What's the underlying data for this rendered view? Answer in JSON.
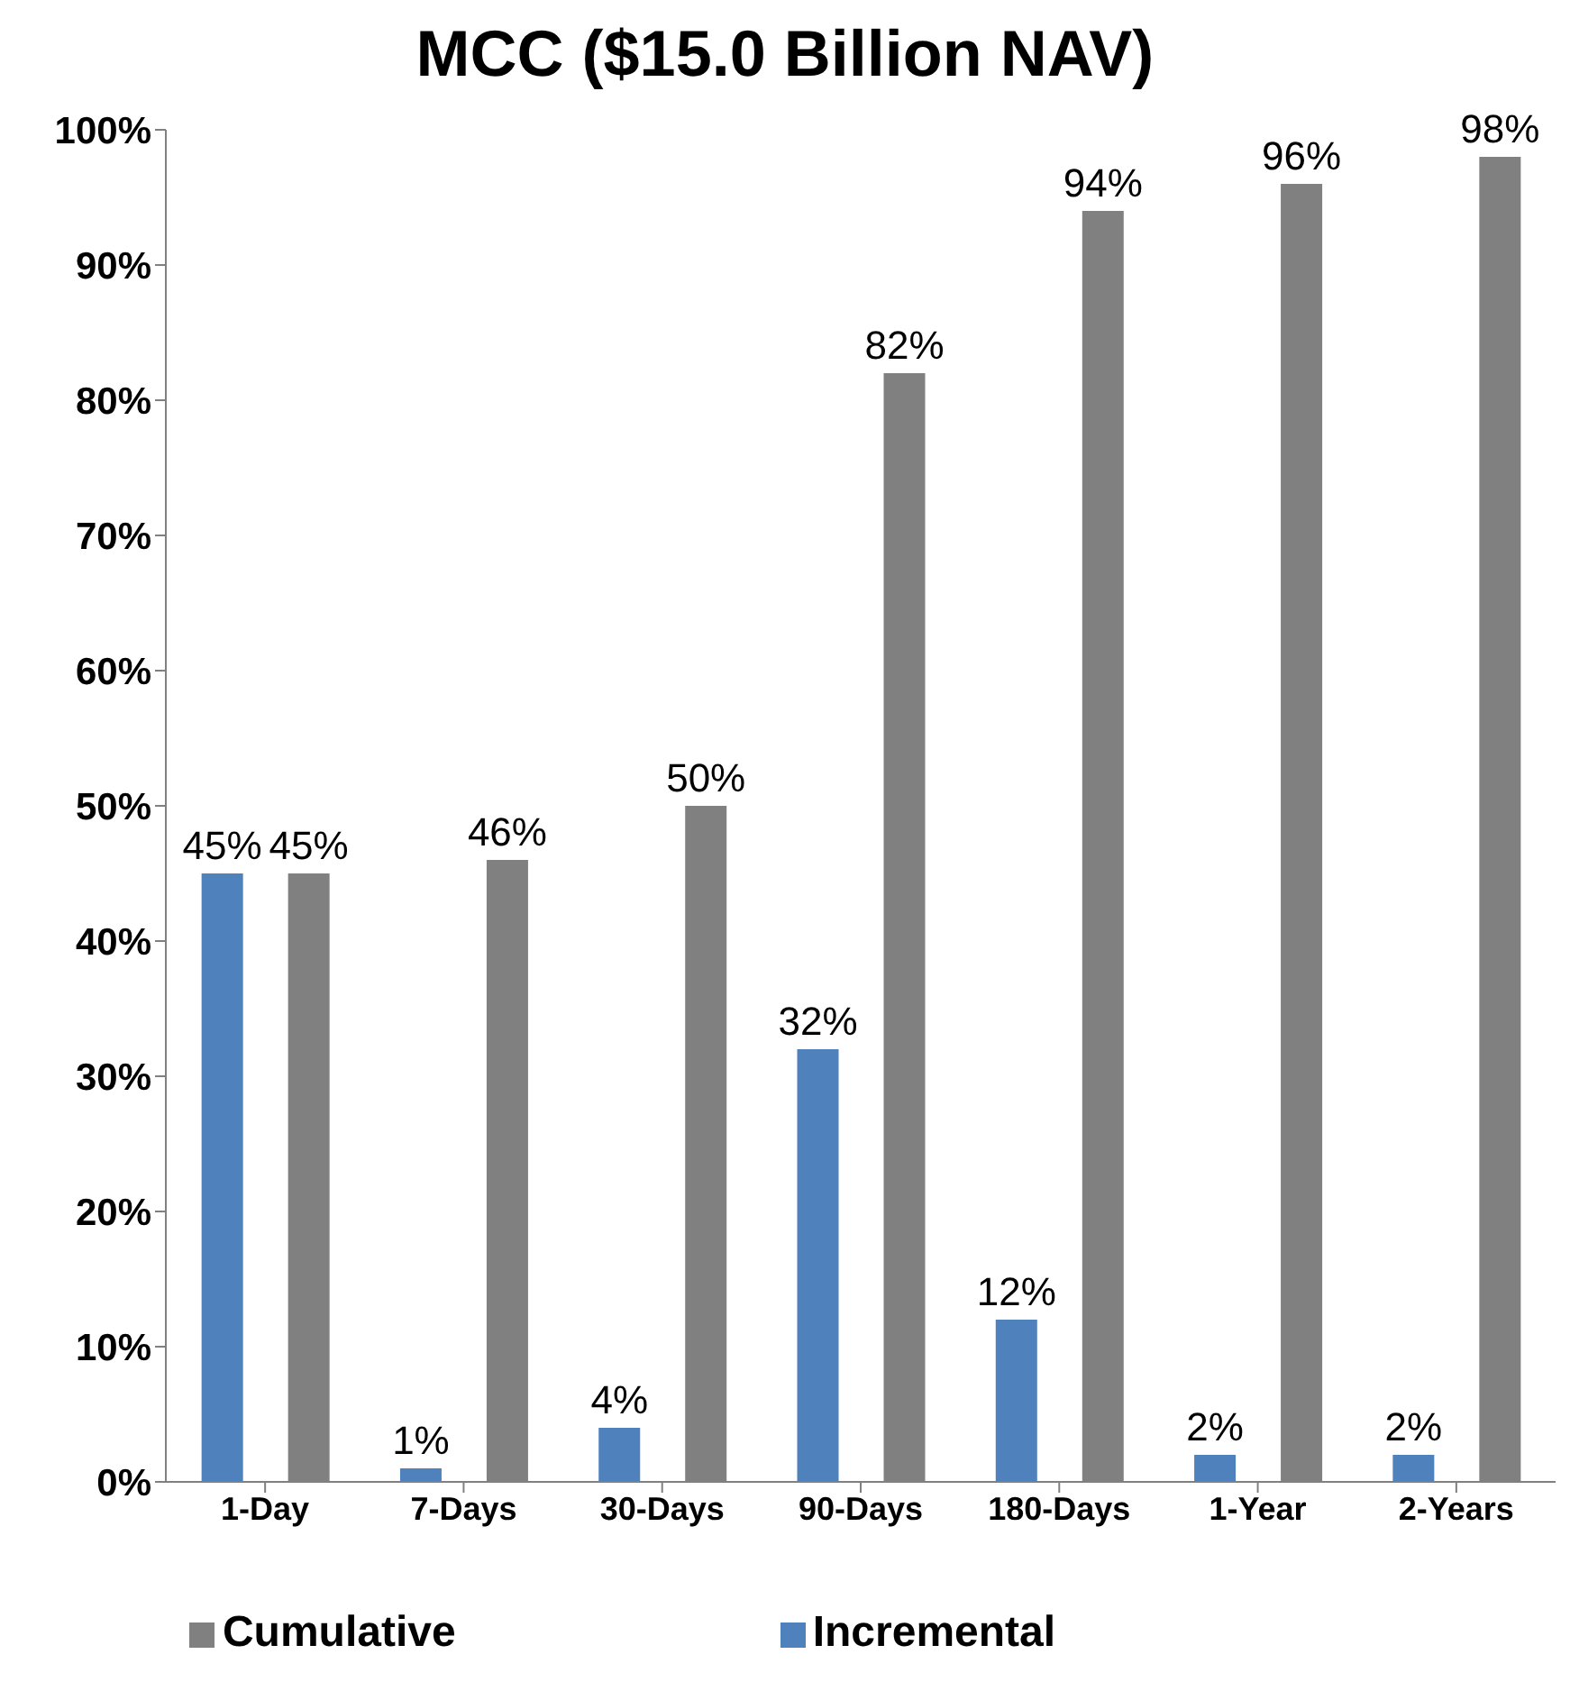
{
  "chart_data": {
    "type": "bar",
    "title": "MCC ($15.0 Billion NAV)",
    "categories": [
      "1-Day",
      "7-Days",
      "30-Days",
      "90-Days",
      "180-Days",
      "1-Year",
      "2-Years"
    ],
    "series": [
      {
        "name": "Incremental",
        "color": "#4f81bd",
        "values": [
          45,
          1,
          4,
          32,
          12,
          2,
          2
        ],
        "value_labels": [
          "45%",
          "1%",
          "4%",
          "32%",
          "12%",
          "2%",
          "2%"
        ]
      },
      {
        "name": "Cumulative",
        "color": "#808080",
        "values": [
          45,
          46,
          50,
          82,
          94,
          96,
          98
        ],
        "value_labels": [
          "45%",
          "46%",
          "50%",
          "82%",
          "94%",
          "96%",
          "98%"
        ]
      }
    ],
    "ylim": [
      0,
      100
    ],
    "yticks": [
      {
        "value": 0,
        "label": "0%"
      },
      {
        "value": 10,
        "label": "10%"
      },
      {
        "value": 20,
        "label": "20%"
      },
      {
        "value": 30,
        "label": "30%"
      },
      {
        "value": 40,
        "label": "40%"
      },
      {
        "value": 50,
        "label": "50%"
      },
      {
        "value": 60,
        "label": "60%"
      },
      {
        "value": 70,
        "label": "70%"
      },
      {
        "value": 80,
        "label": "80%"
      },
      {
        "value": 90,
        "label": "90%"
      },
      {
        "value": 100,
        "label": "100%"
      }
    ],
    "grid": false,
    "legend": "bottom"
  }
}
